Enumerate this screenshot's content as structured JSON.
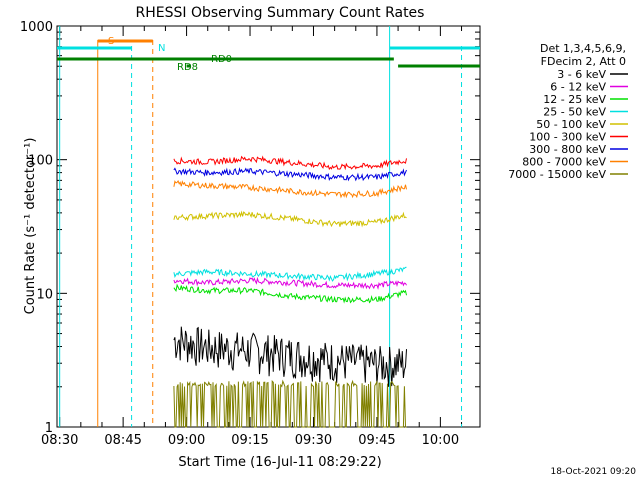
{
  "chart_data": {
    "type": "line",
    "title": "RHESSI Observing Summary Count Rates",
    "xlabel": "Start Time (16-Jul-11 08:29:22)",
    "ylabel": "Count Rate (s⁻¹ detector⁻¹)",
    "y_scale": "log",
    "ylim": [
      1,
      1000
    ],
    "xlim": [
      "08:29:22",
      "10:09:22"
    ],
    "x_ticks": [
      "08:30",
      "08:45",
      "09:00",
      "09:15",
      "09:30",
      "09:45",
      "10:00"
    ],
    "y_ticks": [
      "1",
      "10",
      "100",
      "1000"
    ],
    "legend_header": [
      "Det 1,3,4,5,6,9,",
      "FDecim 2, Att 0"
    ],
    "legend_placement": "right",
    "series": [
      {
        "name": "3 - 6 keV",
        "color": "#000000",
        "x": [
          "08:58",
          "09:05",
          "09:15",
          "09:25",
          "09:35",
          "09:45",
          "09:51"
        ],
        "values": [
          4.5,
          4.0,
          3.8,
          3.5,
          3.2,
          3.0,
          3.0
        ]
      },
      {
        "name": "6 - 12 keV",
        "color": "#e000e0",
        "x": [
          "08:58",
          "09:05",
          "09:15",
          "09:25",
          "09:35",
          "09:45",
          "09:51"
        ],
        "values": [
          12.5,
          12.0,
          12.5,
          12.0,
          11.5,
          11.5,
          12.0
        ]
      },
      {
        "name": "12 - 25 keV",
        "color": "#00e000",
        "x": [
          "08:58",
          "09:05",
          "09:15",
          "09:25",
          "09:35",
          "09:45",
          "09:51"
        ],
        "values": [
          11.0,
          10.5,
          10.5,
          9.5,
          9.0,
          9.0,
          10.0
        ]
      },
      {
        "name": "25 - 50 keV",
        "color": "#00e0e0",
        "x": [
          "08:58",
          "09:05",
          "09:15",
          "09:25",
          "09:35",
          "09:45",
          "09:51"
        ],
        "values": [
          14.0,
          14.5,
          14.0,
          13.5,
          13.0,
          14.0,
          15.0
        ]
      },
      {
        "name": "50 - 100 keV",
        "color": "#d0c000",
        "x": [
          "08:58",
          "09:05",
          "09:15",
          "09:25",
          "09:35",
          "09:45",
          "09:51"
        ],
        "values": [
          37,
          38,
          39,
          36,
          33,
          34,
          38
        ]
      },
      {
        "name": "100 - 300 keV",
        "color": "#ff0000",
        "x": [
          "08:58",
          "09:05",
          "09:15",
          "09:25",
          "09:35",
          "09:45",
          "09:51"
        ],
        "values": [
          98,
          96,
          102,
          95,
          88,
          90,
          98
        ]
      },
      {
        "name": "300 - 800 keV",
        "color": "#0000e0",
        "x": [
          "08:58",
          "09:05",
          "09:15",
          "09:25",
          "09:35",
          "09:45",
          "09:51"
        ],
        "values": [
          82,
          80,
          82,
          78,
          74,
          74,
          80
        ]
      },
      {
        "name": "800 - 7000 keV",
        "color": "#ff8000",
        "x": [
          "08:58",
          "09:05",
          "09:15",
          "09:25",
          "09:35",
          "09:45",
          "09:51"
        ],
        "values": [
          66,
          64,
          62,
          58,
          55,
          56,
          62
        ]
      },
      {
        "name": "7000 - 15000 keV",
        "color": "#808000",
        "x": [
          "08:58",
          "09:05",
          "09:15",
          "09:25",
          "09:35",
          "09:45",
          "09:51"
        ],
        "values": [
          1.8,
          1.8,
          1.7,
          1.6,
          1.5,
          1.6,
          1.8
        ]
      }
    ],
    "flags": [
      {
        "label": "S",
        "color": "#ff8000"
      },
      {
        "label": "N",
        "color": "#00e0e0"
      },
      {
        "label": "RD0",
        "color": "#008000"
      },
      {
        "label": "RD8",
        "color": "#008000"
      }
    ],
    "footer_date": "18-Oct-2021 09:20"
  }
}
